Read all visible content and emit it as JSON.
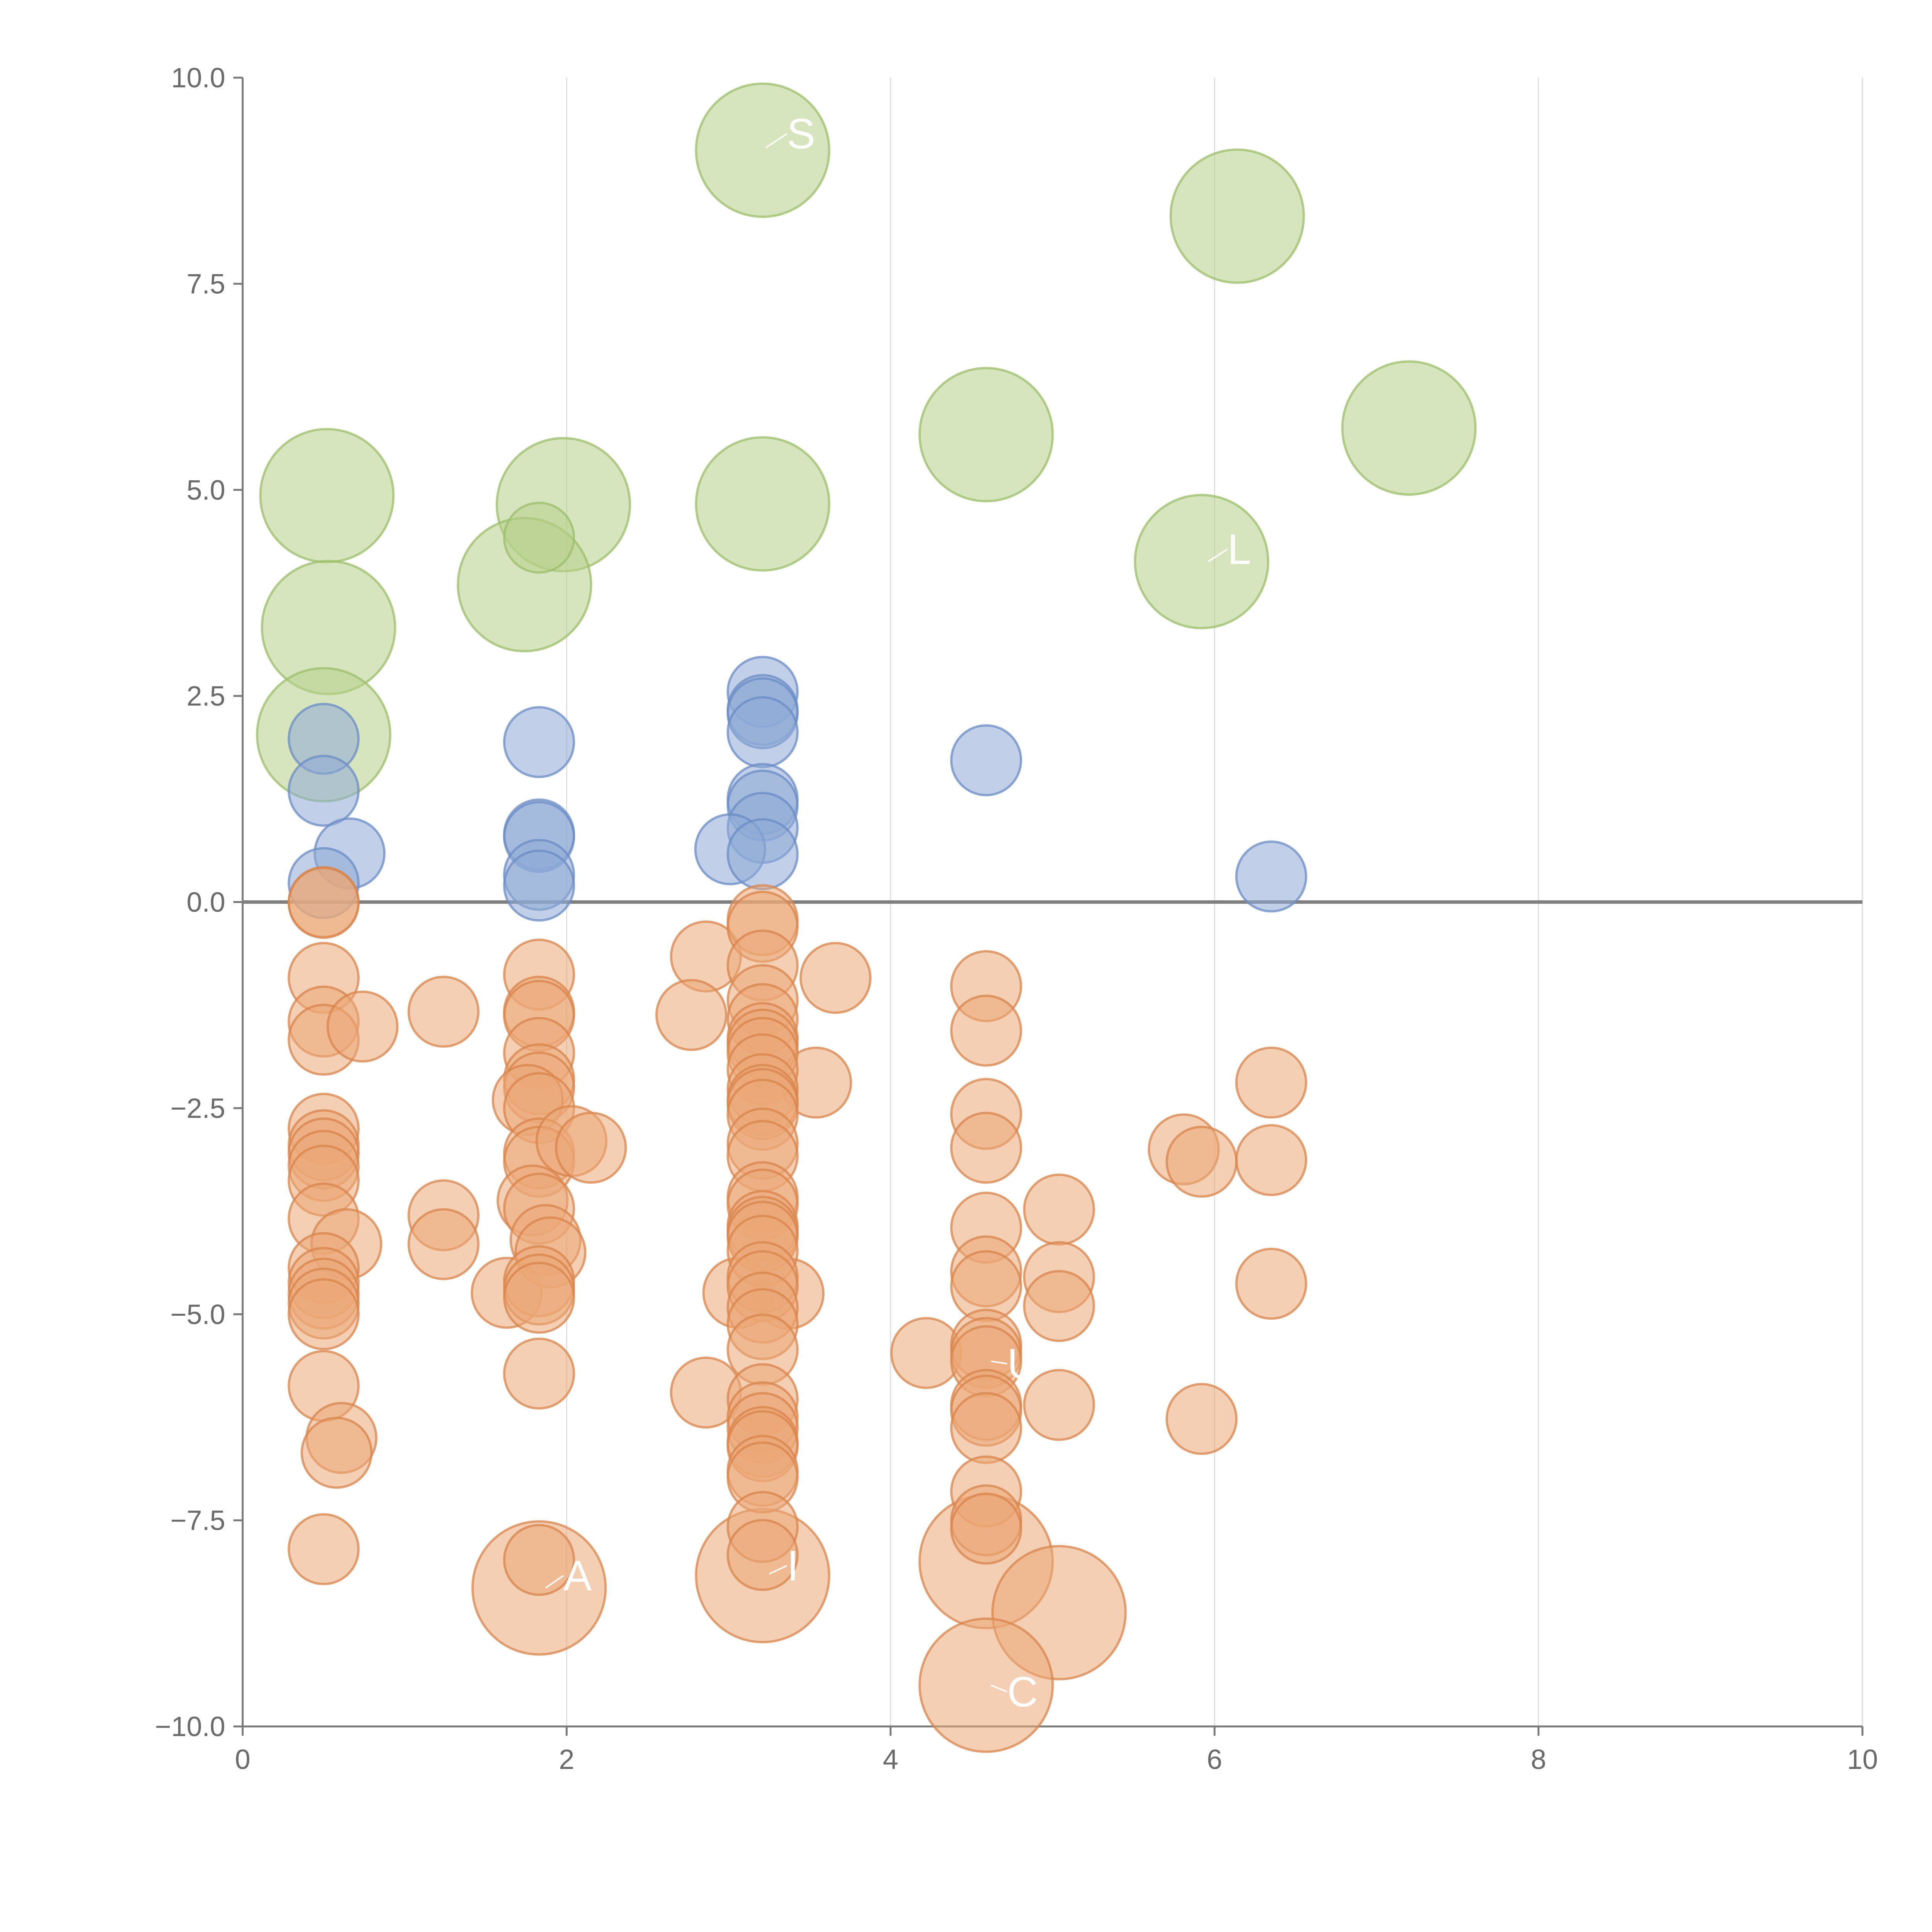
{
  "chart_data": {
    "type": "scatter",
    "title": "",
    "xlabel": "",
    "ylabel": "",
    "xlim": [
      0,
      10
    ],
    "ylim": [
      -10,
      10
    ],
    "x_ticks": [
      0,
      2,
      4,
      6,
      8,
      10
    ],
    "x_tick_labels": [
      "0",
      "2",
      "4",
      "6",
      "8",
      "10"
    ],
    "y_ticks": [
      -10,
      -7.5,
      -5,
      -2.5,
      0,
      2.5,
      5,
      7.5,
      10
    ],
    "y_tick_labels": [
      "−10.0",
      "−7.5",
      "−5.0",
      "−2.5",
      "0.0",
      "2.5",
      "5.0",
      "7.5",
      "10.0"
    ],
    "grid": "vertical",
    "zero_line": true,
    "colors": {
      "axis": "#7a7a7a",
      "grid": "#dedede",
      "zero_line": "#808080",
      "label_text": "#6b6b6b",
      "connector": "#ffffff"
    },
    "series": [
      {
        "name": "green-large",
        "fill": "#b7d08a",
        "stroke": "#9cbd6a",
        "size": 4.2,
        "points": [
          {
            "x": 3.21,
            "y": 9.12
          },
          {
            "x": 6.14,
            "y": 8.32
          },
          {
            "x": 7.2,
            "y": 5.75
          },
          {
            "x": 4.59,
            "y": 5.67
          },
          {
            "x": 0.52,
            "y": 4.93
          },
          {
            "x": 1.98,
            "y": 4.82
          },
          {
            "x": 3.21,
            "y": 4.83
          },
          {
            "x": 5.92,
            "y": 4.13
          },
          {
            "x": 1.74,
            "y": 3.85
          },
          {
            "x": 0.53,
            "y": 3.33
          },
          {
            "x": 0.5,
            "y": 2.03
          }
        ]
      },
      {
        "name": "green-small",
        "fill": "#b7d08a",
        "stroke": "#9cbd6a",
        "size": 2.2,
        "points": [
          {
            "x": 1.83,
            "y": 4.42
          }
        ]
      },
      {
        "name": "blue",
        "fill": "#8eaad6",
        "stroke": "#6a8cc4",
        "size": 2.2,
        "points": [
          {
            "x": 3.21,
            "y": 2.55
          },
          {
            "x": 3.21,
            "y": 2.33
          },
          {
            "x": 3.21,
            "y": 2.29
          },
          {
            "x": 3.21,
            "y": 2.06
          },
          {
            "x": 1.83,
            "y": 1.94
          },
          {
            "x": 0.5,
            "y": 1.98
          },
          {
            "x": 4.59,
            "y": 1.72
          },
          {
            "x": 0.5,
            "y": 1.35
          },
          {
            "x": 3.21,
            "y": 1.25
          },
          {
            "x": 3.21,
            "y": 1.17
          },
          {
            "x": 3.21,
            "y": 0.9
          },
          {
            "x": 1.83,
            "y": 0.82
          },
          {
            "x": 1.83,
            "y": 0.79
          },
          {
            "x": 0.66,
            "y": 0.59
          },
          {
            "x": 3.01,
            "y": 0.64
          },
          {
            "x": 3.21,
            "y": 0.58
          },
          {
            "x": 1.83,
            "y": 0.33
          },
          {
            "x": 6.35,
            "y": 0.31
          },
          {
            "x": 0.5,
            "y": 0.23
          },
          {
            "x": 1.83,
            "y": 0.2
          }
        ]
      },
      {
        "name": "orange-large",
        "fill": "#eba776",
        "stroke": "#d8844b",
        "size": 4.2,
        "points": [
          {
            "x": 1.83,
            "y": -8.32
          },
          {
            "x": 3.21,
            "y": -8.17
          },
          {
            "x": 4.59,
            "y": -8.0
          },
          {
            "x": 5.04,
            "y": -8.62
          },
          {
            "x": 4.59,
            "y": -9.5
          }
        ]
      },
      {
        "name": "orange",
        "fill": "#eba776",
        "stroke": "#d8844b",
        "size": 2.2,
        "points": [
          {
            "x": 0.5,
            "y": 0.0
          },
          {
            "x": 0.5,
            "y": -0.01
          },
          {
            "x": 0.5,
            "y": -0.92
          },
          {
            "x": 0.5,
            "y": -1.45
          },
          {
            "x": 0.5,
            "y": -1.67
          },
          {
            "x": 0.74,
            "y": -1.51
          },
          {
            "x": 0.5,
            "y": -2.75
          },
          {
            "x": 0.5,
            "y": -2.95
          },
          {
            "x": 0.5,
            "y": -3.05
          },
          {
            "x": 0.5,
            "y": -3.2
          },
          {
            "x": 0.5,
            "y": -3.38
          },
          {
            "x": 0.5,
            "y": -3.84
          },
          {
            "x": 0.64,
            "y": -4.15
          },
          {
            "x": 0.5,
            "y": -4.44
          },
          {
            "x": 0.5,
            "y": -4.62
          },
          {
            "x": 0.5,
            "y": -4.75
          },
          {
            "x": 0.5,
            "y": -4.87
          },
          {
            "x": 0.5,
            "y": -5.0
          },
          {
            "x": 0.5,
            "y": -5.87
          },
          {
            "x": 0.61,
            "y": -6.5
          },
          {
            "x": 0.58,
            "y": -6.68
          },
          {
            "x": 0.5,
            "y": -7.85
          },
          {
            "x": 1.24,
            "y": -1.33
          },
          {
            "x": 1.24,
            "y": -3.8
          },
          {
            "x": 1.24,
            "y": -4.15
          },
          {
            "x": 1.63,
            "y": -4.74
          },
          {
            "x": 1.83,
            "y": -0.88
          },
          {
            "x": 1.83,
            "y": -1.33
          },
          {
            "x": 1.83,
            "y": -1.38
          },
          {
            "x": 1.83,
            "y": -1.83
          },
          {
            "x": 1.83,
            "y": -2.15
          },
          {
            "x": 1.83,
            "y": -2.25
          },
          {
            "x": 1.76,
            "y": -2.4
          },
          {
            "x": 1.83,
            "y": -2.5
          },
          {
            "x": 1.83,
            "y": -3.05
          },
          {
            "x": 1.83,
            "y": -3.15
          },
          {
            "x": 2.03,
            "y": -2.9
          },
          {
            "x": 2.15,
            "y": -2.98
          },
          {
            "x": 1.79,
            "y": -3.62
          },
          {
            "x": 1.83,
            "y": -3.72
          },
          {
            "x": 1.87,
            "y": -4.1
          },
          {
            "x": 1.9,
            "y": -4.25
          },
          {
            "x": 1.83,
            "y": -4.6
          },
          {
            "x": 1.83,
            "y": -4.7
          },
          {
            "x": 1.83,
            "y": -4.8
          },
          {
            "x": 1.83,
            "y": -5.72
          },
          {
            "x": 1.83,
            "y": -7.98
          },
          {
            "x": 2.86,
            "y": -0.66
          },
          {
            "x": 2.77,
            "y": -1.37
          },
          {
            "x": 3.66,
            "y": -0.92
          },
          {
            "x": 3.54,
            "y": -2.19
          },
          {
            "x": 3.06,
            "y": -4.74
          },
          {
            "x": 3.37,
            "y": -4.75
          },
          {
            "x": 2.86,
            "y": -5.95
          },
          {
            "x": 4.22,
            "y": -5.47
          },
          {
            "x": 3.21,
            "y": -0.22
          },
          {
            "x": 3.21,
            "y": -0.3
          },
          {
            "x": 3.21,
            "y": -0.77
          },
          {
            "x": 3.21,
            "y": -1.19
          },
          {
            "x": 3.21,
            "y": -1.42
          },
          {
            "x": 3.21,
            "y": -1.65
          },
          {
            "x": 3.21,
            "y": -1.73
          },
          {
            "x": 3.21,
            "y": -1.83
          },
          {
            "x": 3.21,
            "y": -2.03
          },
          {
            "x": 3.21,
            "y": -2.27
          },
          {
            "x": 3.21,
            "y": -2.4
          },
          {
            "x": 3.21,
            "y": -2.45
          },
          {
            "x": 3.21,
            "y": -2.58
          },
          {
            "x": 3.21,
            "y": -2.93
          },
          {
            "x": 3.21,
            "y": -3.08
          },
          {
            "x": 3.21,
            "y": -3.58
          },
          {
            "x": 3.21,
            "y": -3.67
          },
          {
            "x": 3.21,
            "y": -3.93
          },
          {
            "x": 3.21,
            "y": -4.0
          },
          {
            "x": 3.21,
            "y": -4.06
          },
          {
            "x": 3.21,
            "y": -4.23
          },
          {
            "x": 3.21,
            "y": -4.55
          },
          {
            "x": 3.21,
            "y": -4.66
          },
          {
            "x": 3.21,
            "y": -4.92
          },
          {
            "x": 3.21,
            "y": -5.12
          },
          {
            "x": 3.21,
            "y": -5.43
          },
          {
            "x": 3.21,
            "y": -6.03
          },
          {
            "x": 3.21,
            "y": -6.25
          },
          {
            "x": 3.21,
            "y": -6.38
          },
          {
            "x": 3.21,
            "y": -6.55
          },
          {
            "x": 3.21,
            "y": -6.6
          },
          {
            "x": 3.21,
            "y": -6.9
          },
          {
            "x": 3.21,
            "y": -6.98
          },
          {
            "x": 3.21,
            "y": -7.58
          },
          {
            "x": 3.21,
            "y": -7.92
          },
          {
            "x": 4.59,
            "y": -1.02
          },
          {
            "x": 4.59,
            "y": -1.56
          },
          {
            "x": 4.59,
            "y": -2.57
          },
          {
            "x": 4.59,
            "y": -2.98
          },
          {
            "x": 4.59,
            "y": -3.95
          },
          {
            "x": 4.59,
            "y": -4.48
          },
          {
            "x": 4.59,
            "y": -4.66
          },
          {
            "x": 4.59,
            "y": -5.37
          },
          {
            "x": 4.59,
            "y": -5.47
          },
          {
            "x": 4.59,
            "y": -5.57
          },
          {
            "x": 4.59,
            "y": -6.1
          },
          {
            "x": 4.59,
            "y": -6.17
          },
          {
            "x": 4.59,
            "y": -6.38
          },
          {
            "x": 4.59,
            "y": -7.15
          },
          {
            "x": 4.59,
            "y": -7.5
          },
          {
            "x": 4.59,
            "y": -7.6
          },
          {
            "x": 5.04,
            "y": -3.73
          },
          {
            "x": 5.04,
            "y": -4.55
          },
          {
            "x": 5.04,
            "y": -4.9
          },
          {
            "x": 5.04,
            "y": -6.1
          },
          {
            "x": 5.81,
            "y": -3.0
          },
          {
            "x": 5.92,
            "y": -3.15
          },
          {
            "x": 5.92,
            "y": -6.27
          },
          {
            "x": 6.35,
            "y": -2.19
          },
          {
            "x": 6.35,
            "y": -3.13
          },
          {
            "x": 6.35,
            "y": -4.63
          }
        ]
      }
    ],
    "annotations": [
      {
        "text": "S",
        "x": 3.36,
        "y": 9.32,
        "from_x": 3.23,
        "from_y": 9.15
      },
      {
        "text": "L",
        "x": 6.08,
        "y": 4.28,
        "from_x": 5.96,
        "from_y": 4.13
      },
      {
        "text": "A",
        "x": 1.98,
        "y": -8.17,
        "from_x": 1.87,
        "from_y": -8.32
      },
      {
        "text": "I",
        "x": 3.36,
        "y": -8.05,
        "from_x": 3.25,
        "from_y": -8.15
      },
      {
        "text": "C",
        "x": 4.72,
        "y": -9.58,
        "from_x": 4.62,
        "from_y": -9.5
      },
      {
        "text": "U",
        "x": 4.72,
        "y": -5.6,
        "from_x": 4.62,
        "from_y": -5.57
      }
    ]
  }
}
